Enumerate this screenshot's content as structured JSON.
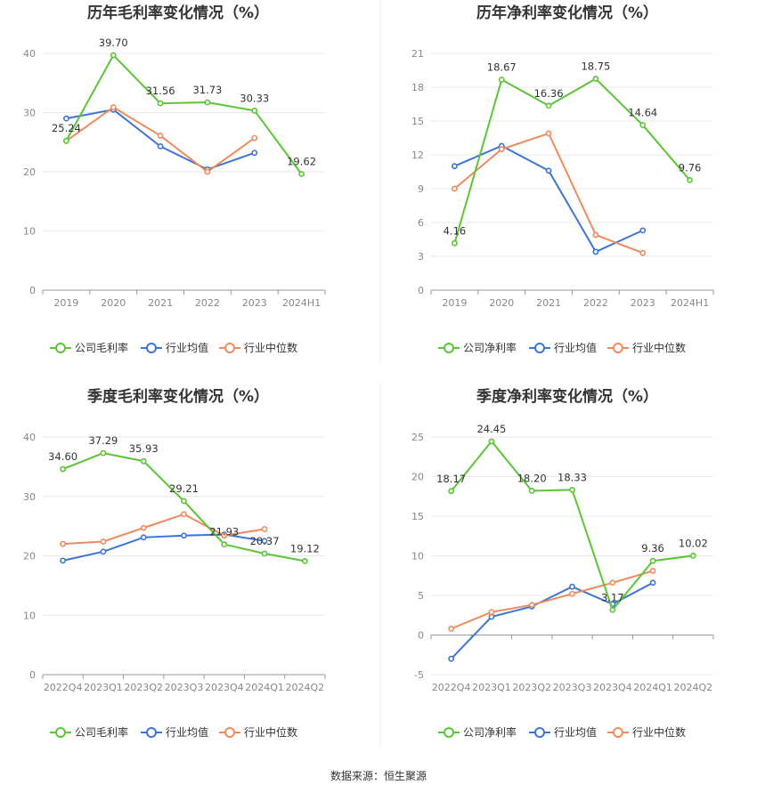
{
  "source_label": "数据来源：恒生聚源",
  "colors": {
    "company": "#5ac535",
    "avg": "#3d74d6",
    "median": "#ef8a5e",
    "grid": "#e8e8e8",
    "axis": "#999999"
  },
  "chart_data": [
    {
      "type": "line",
      "title": "历年毛利率变化情况（%）",
      "categories": [
        "2019",
        "2020",
        "2021",
        "2022",
        "2023",
        "2024H1"
      ],
      "ylim": [
        0,
        40
      ],
      "yticks": [
        0,
        10,
        20,
        30,
        40
      ],
      "grid": true,
      "legend": "bottom",
      "series": [
        {
          "name": "公司毛利率",
          "role": "company",
          "values": [
            25.24,
            39.7,
            31.56,
            31.73,
            30.33,
            19.62
          ],
          "labels": [
            "25.24",
            "39.70",
            "31.56",
            "31.73",
            "30.33",
            "19.62"
          ]
        },
        {
          "name": "行业均值",
          "role": "avg",
          "values": [
            29.0,
            30.5,
            24.3,
            20.4,
            23.2,
            null
          ]
        },
        {
          "name": "行业中位数",
          "role": "median",
          "values": [
            25.2,
            30.9,
            26.1,
            20.0,
            25.7,
            null
          ]
        }
      ]
    },
    {
      "type": "line",
      "title": "历年净利率变化情况（%）",
      "categories": [
        "2019",
        "2020",
        "2021",
        "2022",
        "2023",
        "2024H1"
      ],
      "ylim": [
        0,
        21
      ],
      "yticks": [
        0,
        3,
        6,
        9,
        12,
        15,
        18,
        21
      ],
      "grid": true,
      "legend": "bottom",
      "series": [
        {
          "name": "公司净利率",
          "role": "company",
          "values": [
            4.16,
            18.67,
            16.36,
            18.75,
            14.64,
            9.76
          ],
          "labels": [
            "4.16",
            "18.67",
            "16.36",
            "18.75",
            "14.64",
            "9.76"
          ]
        },
        {
          "name": "行业均值",
          "role": "avg",
          "values": [
            11.0,
            12.8,
            10.6,
            3.4,
            5.3,
            null
          ]
        },
        {
          "name": "行业中位数",
          "role": "median",
          "values": [
            9.0,
            12.5,
            13.9,
            4.9,
            3.3,
            null
          ]
        }
      ]
    },
    {
      "type": "line",
      "title": "季度毛利率变化情况（%）",
      "categories": [
        "2022Q4",
        "2023Q1",
        "2023Q2",
        "2023Q3",
        "2023Q4",
        "2024Q1",
        "2024Q2"
      ],
      "ylim": [
        0,
        40
      ],
      "yticks": [
        0,
        10,
        20,
        30,
        40
      ],
      "grid": true,
      "legend": "bottom",
      "series": [
        {
          "name": "公司毛利率",
          "role": "company",
          "values": [
            34.6,
            37.29,
            35.93,
            29.21,
            21.93,
            20.37,
            19.12
          ],
          "labels": [
            "34.60",
            "37.29",
            "35.93",
            "29.21",
            "21.93",
            "20.37",
            "19.12"
          ]
        },
        {
          "name": "行业均值",
          "role": "avg",
          "values": [
            19.2,
            20.7,
            23.1,
            23.4,
            23.6,
            22.5,
            null
          ]
        },
        {
          "name": "行业中位数",
          "role": "median",
          "values": [
            22.0,
            22.4,
            24.7,
            27.0,
            23.4,
            24.5,
            null
          ]
        }
      ]
    },
    {
      "type": "line",
      "title": "季度净利率变化情况（%）",
      "categories": [
        "2022Q4",
        "2023Q1",
        "2023Q2",
        "2023Q3",
        "2023Q4",
        "2024Q1",
        "2024Q2"
      ],
      "ylim": [
        -5,
        25
      ],
      "yticks": [
        -5,
        0,
        5,
        10,
        15,
        20,
        25
      ],
      "grid": true,
      "legend": "bottom",
      "series": [
        {
          "name": "公司净利率",
          "role": "company",
          "values": [
            18.17,
            24.45,
            18.2,
            18.33,
            3.17,
            9.36,
            10.02
          ],
          "labels": [
            "18.17",
            "24.45",
            "18.20",
            "18.33",
            "3.17",
            "9.36",
            "10.02"
          ]
        },
        {
          "name": "行业均值",
          "role": "avg",
          "values": [
            -3.0,
            2.3,
            3.6,
            6.1,
            3.9,
            6.6,
            null
          ]
        },
        {
          "name": "行业中位数",
          "role": "median",
          "values": [
            0.8,
            2.9,
            3.8,
            5.2,
            6.6,
            8.1,
            null
          ]
        }
      ]
    }
  ]
}
